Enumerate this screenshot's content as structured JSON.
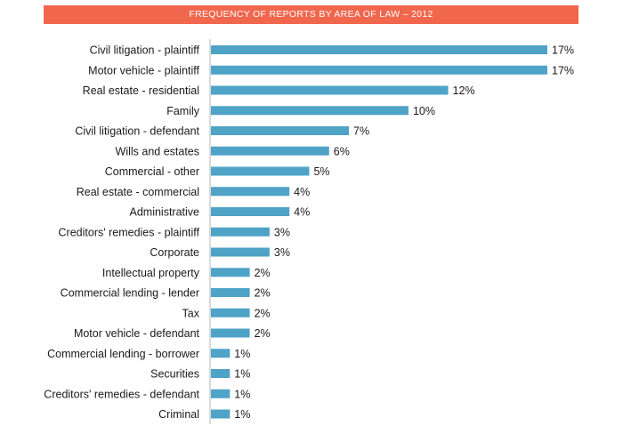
{
  "colors": {
    "title_bg": "#f0674e",
    "title_text": "#ffffff",
    "bar": "#4ea3c7",
    "axis": "#b5b5b5",
    "text": "#1a1a1a"
  },
  "chart_data": {
    "type": "bar",
    "orientation": "horizontal",
    "title": "FREQUENCY OF REPORTS BY AREA OF LAW – 2012",
    "xlabel": "",
    "ylabel": "",
    "xlim": [
      0,
      17
    ],
    "grid": false,
    "value_suffix": "%",
    "categories": [
      "Civil litigation - plaintiff",
      "Motor vehicle - plaintiff",
      "Real estate - residential",
      "Family",
      "Civil litigation - defendant",
      "Wills and estates",
      "Commercial - other",
      "Real estate - commercial",
      "Administrative",
      "Creditors' remedies - plaintiff",
      "Corporate",
      "Intellectual property",
      "Commercial lending - lender",
      "Tax",
      "Motor vehicle - defendant",
      "Commercial lending - borrower",
      "Securities",
      "Creditors' remedies - defendant",
      "Criminal"
    ],
    "values": [
      17,
      17,
      12,
      10,
      7,
      6,
      5,
      4,
      4,
      3,
      3,
      2,
      2,
      2,
      2,
      1,
      1,
      1,
      1
    ]
  }
}
